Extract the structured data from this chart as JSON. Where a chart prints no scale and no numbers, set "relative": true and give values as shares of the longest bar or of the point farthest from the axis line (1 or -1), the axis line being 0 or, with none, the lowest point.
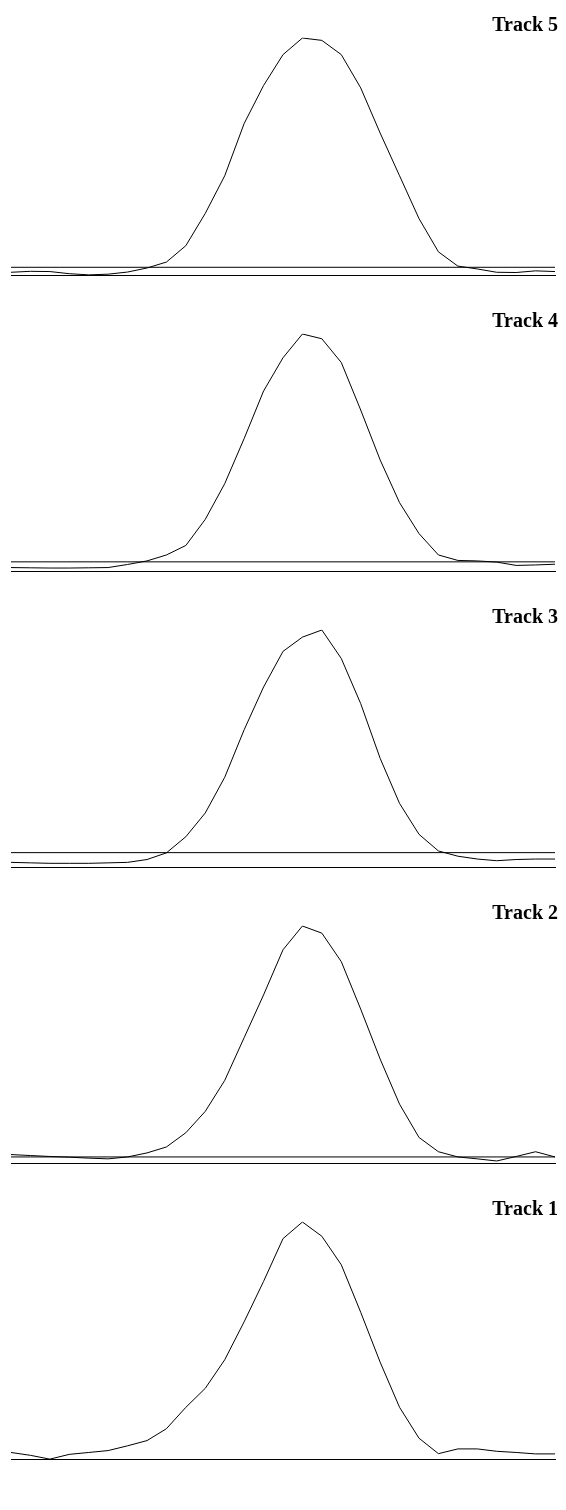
{
  "chart_data": [
    {
      "type": "line",
      "title": "Track 5",
      "relative": true,
      "categories": [
        null,
        null,
        null,
        null,
        null,
        null,
        null,
        null,
        null,
        null,
        null,
        null,
        null,
        null,
        null,
        null,
        null,
        null,
        null,
        null,
        null,
        null,
        null,
        null,
        null,
        null,
        null,
        null,
        null
      ],
      "ref_lines": [
        {
          "axis": "y",
          "value": 0.035,
          "color": "#000000"
        }
      ],
      "series": [
        {
          "color": "#000000",
          "values": [
            0.014,
            0.018,
            0.017,
            0.008,
            0.003,
            0.006,
            0.015,
            0.032,
            0.057,
            0.126,
            0.262,
            0.42,
            0.64,
            0.8,
            0.93,
            1,
            0.99,
            0.93,
            0.79,
            0.6,
            0.42,
            0.24,
            0.1,
            0.04,
            0.028,
            0.014,
            0.013,
            0.02,
            0.017
          ]
        }
      ]
    },
    {
      "type": "line",
      "title": "Track 4",
      "relative": true,
      "categories": [
        null,
        null,
        null,
        null,
        null,
        null,
        null,
        null,
        null,
        null,
        null,
        null,
        null,
        null,
        null,
        null,
        null,
        null,
        null,
        null,
        null,
        null,
        null,
        null,
        null,
        null,
        null,
        null,
        null
      ],
      "ref_lines": [
        {
          "axis": "y",
          "value": 0.041,
          "color": "#000000"
        }
      ],
      "series": [
        {
          "color": "#000000",
          "values": [
            0.017,
            0.016,
            0.015,
            0.015,
            0.016,
            0.017,
            0.03,
            0.045,
            0.07,
            0.11,
            0.22,
            0.37,
            0.56,
            0.76,
            0.9,
            1,
            0.98,
            0.88,
            0.68,
            0.47,
            0.29,
            0.16,
            0.07,
            0.047,
            0.045,
            0.04,
            0.026,
            0.028,
            0.031
          ]
        }
      ]
    },
    {
      "type": "line",
      "title": "Track 3",
      "relative": true,
      "categories": [
        null,
        null,
        null,
        null,
        null,
        null,
        null,
        null,
        null,
        null,
        null,
        null,
        null,
        null,
        null,
        null,
        null,
        null,
        null,
        null,
        null,
        null,
        null,
        null,
        null,
        null,
        null,
        null,
        null
      ],
      "ref_lines": [
        {
          "axis": "y",
          "value": 0.063,
          "color": "#000000"
        }
      ],
      "series": [
        {
          "color": "#000000",
          "values": [
            0.022,
            0.02,
            0.018,
            0.018,
            0.018,
            0.02,
            0.022,
            0.034,
            0.062,
            0.13,
            0.23,
            0.38,
            0.58,
            0.76,
            0.91,
            0.97,
            1,
            0.88,
            0.69,
            0.46,
            0.27,
            0.14,
            0.07,
            0.048,
            0.036,
            0.029,
            0.034,
            0.036,
            0.036
          ]
        }
      ]
    },
    {
      "type": "line",
      "title": "Track 2",
      "relative": true,
      "categories": [
        null,
        null,
        null,
        null,
        null,
        null,
        null,
        null,
        null,
        null,
        null,
        null,
        null,
        null,
        null,
        null,
        null,
        null,
        null,
        null,
        null,
        null,
        null,
        null,
        null,
        null,
        null,
        null,
        null
      ],
      "ref_lines": [
        {
          "axis": "y",
          "value": 0.028,
          "color": "#000000"
        }
      ],
      "series": [
        {
          "color": "#000000",
          "values": [
            0.038,
            0.034,
            0.03,
            0.027,
            0.023,
            0.02,
            0.028,
            0.045,
            0.07,
            0.13,
            0.22,
            0.35,
            0.53,
            0.71,
            0.9,
            1,
            0.97,
            0.85,
            0.65,
            0.44,
            0.25,
            0.11,
            0.05,
            0.028,
            0.02,
            0.011,
            0.03,
            0.05,
            0.028
          ]
        }
      ]
    },
    {
      "type": "line",
      "title": "Track 1",
      "relative": true,
      "categories": [
        null,
        null,
        null,
        null,
        null,
        null,
        null,
        null,
        null,
        null,
        null,
        null,
        null,
        null,
        null,
        null,
        null,
        null,
        null,
        null,
        null,
        null,
        null,
        null,
        null,
        null,
        null,
        null,
        null
      ],
      "series": [
        {
          "color": "#000000",
          "values": [
            0.03,
            0.018,
            0.002,
            0.022,
            0.03,
            0.038,
            0.058,
            0.08,
            0.13,
            0.22,
            0.3,
            0.42,
            0.58,
            0.75,
            0.93,
            1,
            0.94,
            0.82,
            0.62,
            0.41,
            0.22,
            0.09,
            0.025,
            0.045,
            0.045,
            0.035,
            0.03,
            0.024,
            0.024
          ]
        }
      ]
    }
  ]
}
